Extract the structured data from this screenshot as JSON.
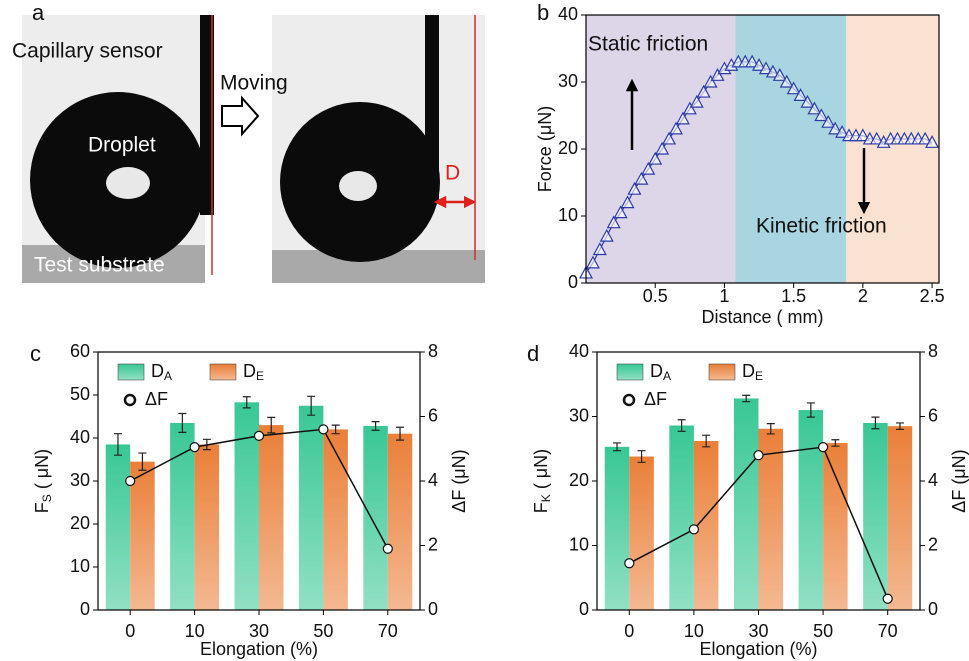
{
  "panel_a": {
    "label": "a",
    "capillary": "Capillary sensor",
    "moving": "Moving",
    "droplet": "Droplet",
    "distance": "D",
    "substrate": "Test substrate"
  },
  "chart_data": [
    {
      "type": "scatter",
      "label": "b",
      "xlabel": "Distance ( mm)",
      "ylabel": "Force (μN)",
      "annotations": [
        "Static friction",
        "Kinetic friction"
      ],
      "regions": [
        {
          "from": 0,
          "to": 1.08,
          "color": "#ddd5e8"
        },
        {
          "from": 1.08,
          "to": 1.88,
          "color": "#a8d5df"
        },
        {
          "from": 1.88,
          "to": 2.55,
          "color": "#f9e2d1"
        }
      ],
      "xlim": [
        0,
        2.55
      ],
      "xticks": [
        0.5,
        1.0,
        1.5,
        2.0,
        2.5
      ],
      "ylim": [
        0,
        40
      ],
      "yticks": [
        0,
        10,
        20,
        30,
        40
      ],
      "series": [
        {
          "color": "#2b3aa8",
          "x": [
            0,
            0.05,
            0.1,
            0.15,
            0.2,
            0.25,
            0.3,
            0.35,
            0.4,
            0.45,
            0.5,
            0.55,
            0.6,
            0.65,
            0.7,
            0.75,
            0.8,
            0.85,
            0.9,
            0.95,
            1.0,
            1.05,
            1.1,
            1.15,
            1.2,
            1.25,
            1.3,
            1.35,
            1.4,
            1.45,
            1.5,
            1.55,
            1.6,
            1.65,
            1.7,
            1.75,
            1.8,
            1.85,
            1.9,
            1.95,
            2.0,
            2.05,
            2.1,
            2.15,
            2.2,
            2.25,
            2.3,
            2.35,
            2.4,
            2.45,
            2.5
          ],
          "values": [
            1.5,
            3,
            5,
            7,
            9,
            10.5,
            12,
            14,
            15.5,
            17,
            18.5,
            20,
            21.5,
            23,
            24.5,
            26,
            27,
            28.5,
            30,
            31,
            32,
            32.5,
            33,
            33,
            33,
            32.5,
            32,
            31.5,
            31,
            30,
            29,
            28,
            27,
            26,
            25,
            24,
            23,
            22.5,
            22,
            22,
            22,
            21.5,
            21.5,
            21,
            21.5,
            21.5,
            21.5,
            21.5,
            21.5,
            21.5,
            21
          ]
        }
      ]
    },
    {
      "type": "bar",
      "label": "c",
      "xlabel": "Elongation (%)",
      "ylabel": {
        "text": "F",
        "sub": "S",
        "unit": " ( μN)"
      },
      "y2label": "ΔF (μN)",
      "categories": [
        "0",
        "10",
        "30",
        "50",
        "70"
      ],
      "ylim": [
        0,
        60
      ],
      "yticks": [
        0,
        10,
        20,
        30,
        40,
        50,
        60
      ],
      "y2lim": [
        0,
        8
      ],
      "y2ticks": [
        0,
        2,
        4,
        6,
        8
      ],
      "series": [
        {
          "type": "bar",
          "name": "D",
          "name_sub": "A",
          "color": "#38c795",
          "values": [
            38.5,
            43.5,
            48.3,
            47.5,
            42.8
          ],
          "errors": [
            2.5,
            2.2,
            1.3,
            2.2,
            1.0
          ]
        },
        {
          "type": "bar",
          "name": "D",
          "name_sub": "E",
          "color": "#ea7f38",
          "values": [
            34.5,
            38.5,
            43,
            42,
            41
          ],
          "errors": [
            2,
            1.2,
            1.8,
            1,
            1.5
          ]
        },
        {
          "type": "line",
          "axis": "y2",
          "name": "ΔF",
          "color": "#111111",
          "values": [
            4.0,
            5.05,
            5.4,
            5.6,
            1.9
          ]
        }
      ]
    },
    {
      "type": "bar",
      "label": "d",
      "xlabel": "Elongation (%)",
      "ylabel": {
        "text": "F",
        "sub": "K",
        "unit": " ( μN)"
      },
      "y2label": "ΔF (μN)",
      "categories": [
        "0",
        "10",
        "30",
        "50",
        "70"
      ],
      "ylim": [
        0,
        40
      ],
      "yticks": [
        0,
        10,
        20,
        30,
        40
      ],
      "y2lim": [
        0,
        8
      ],
      "y2ticks": [
        0,
        2,
        4,
        6,
        8
      ],
      "series": [
        {
          "type": "bar",
          "name": "D",
          "name_sub": "A",
          "color": "#38c795",
          "values": [
            25.3,
            28.6,
            32.8,
            31,
            29
          ],
          "errors": [
            0.6,
            0.9,
            0.5,
            1.1,
            0.9
          ]
        },
        {
          "type": "bar",
          "name": "D",
          "name_sub": "E",
          "color": "#ea7f38",
          "values": [
            23.8,
            26.2,
            28.1,
            25.9,
            28.5
          ],
          "errors": [
            0.9,
            0.9,
            0.8,
            0.5,
            0.5
          ]
        },
        {
          "type": "line",
          "axis": "y2",
          "name": "ΔF",
          "color": "#111111",
          "values": [
            1.45,
            2.5,
            4.8,
            5.05,
            0.35
          ]
        }
      ]
    }
  ]
}
